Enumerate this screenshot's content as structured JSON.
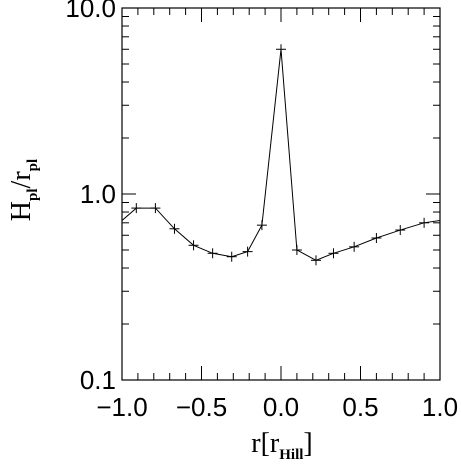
{
  "chart_data": {
    "type": "line",
    "title": "",
    "xlabel": {
      "main": "r",
      "open": "[",
      "inner": "r",
      "sub": "Hill",
      "close": "]"
    },
    "ylabel": {
      "num": "H",
      "num_sub": "pl",
      "slash": "/",
      "den": "r",
      "den_sub": "pl"
    },
    "x_scale": "linear",
    "y_scale": "log",
    "xlim": [
      -1.0,
      1.0
    ],
    "ylim": [
      0.1,
      10.0
    ],
    "x_ticks": [
      -1.0,
      -0.5,
      0.0,
      0.5,
      1.0
    ],
    "x_tick_labels": [
      "−1.0",
      "−0.5",
      "0.0",
      "0.5",
      "1.0"
    ],
    "y_ticks": [
      0.1,
      1.0,
      10.0
    ],
    "y_tick_labels": [
      "0.1",
      "1.0",
      "10.0"
    ],
    "grid": false,
    "marker": "plus",
    "series": [
      {
        "x": [
          -1.0,
          -0.91,
          -0.79,
          -0.67,
          -0.55,
          -0.43,
          -0.31,
          -0.21,
          -0.12,
          0.0,
          0.1,
          0.22,
          0.33,
          0.46,
          0.6,
          0.75,
          0.9,
          1.0
        ],
        "y": [
          0.72,
          0.84,
          0.84,
          0.65,
          0.53,
          0.48,
          0.46,
          0.49,
          0.68,
          6.0,
          0.5,
          0.44,
          0.48,
          0.52,
          0.58,
          0.64,
          0.7,
          0.72
        ]
      }
    ],
    "colors": {
      "line": "#000000",
      "axes": "#000000",
      "background": "#ffffff"
    }
  }
}
